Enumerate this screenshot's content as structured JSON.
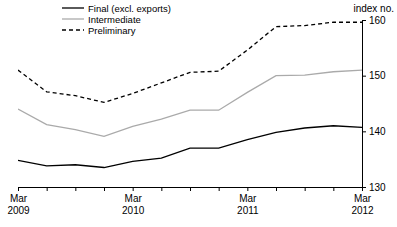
{
  "chart_data": {
    "type": "line",
    "y_label": "index no.",
    "categories": [
      "Mar 2009",
      null,
      null,
      null,
      "Mar 2010",
      null,
      null,
      null,
      "Mar 2011",
      null,
      null,
      null,
      "Mar 2012"
    ],
    "series": [
      {
        "name": "Final (excl. exports)",
        "color": "#000000",
        "line_style": "solid",
        "values": [
          134.8,
          133.8,
          134.0,
          133.5,
          134.6,
          135.2,
          137.0,
          137.0,
          138.5,
          139.8,
          140.6,
          141.0,
          140.7
        ]
      },
      {
        "name": "Intermediate",
        "color": "#aaaaaa",
        "line_style": "solid",
        "values": [
          144.0,
          141.2,
          140.3,
          139.1,
          140.9,
          142.2,
          143.8,
          143.8,
          147.0,
          150.0,
          150.1,
          150.7,
          151.0
        ]
      },
      {
        "name": "Preliminary",
        "color": "#000000",
        "line_style": "dashed",
        "values": [
          151.0,
          147.1,
          146.4,
          145.2,
          146.8,
          148.7,
          150.6,
          150.8,
          154.6,
          158.8,
          159.0,
          159.6,
          159.6
        ]
      }
    ],
    "ylim": [
      130,
      160
    ],
    "yticks": [
      130,
      140,
      150,
      160
    ],
    "grid": false,
    "legend": "top-left"
  }
}
